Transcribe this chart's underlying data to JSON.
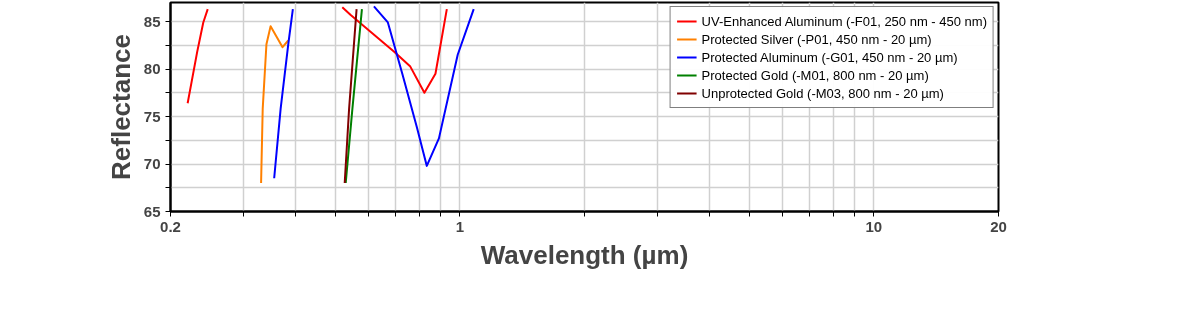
{
  "chart_data": {
    "type": "line",
    "xlabel": "Wavelength (µm)",
    "ylabel": "Reflectance",
    "log": "x",
    "grid": true,
    "legend": "top right",
    "line_style": "solid",
    "marker": "none",
    "xlim": [
      0.2,
      20
    ],
    "xticks": [
      0.2,
      {
        "value": 0.3,
        "label": null
      },
      {
        "value": 0.4,
        "label": null
      },
      {
        "value": 0.5,
        "label": null
      },
      {
        "value": 0.6,
        "label": null
      },
      {
        "value": 0.7,
        "label": null
      },
      {
        "value": 0.8,
        "label": null
      },
      {
        "value": 0.9,
        "label": null
      },
      1,
      {
        "value": 2,
        "label": null
      },
      {
        "value": 3,
        "label": null
      },
      {
        "value": 4,
        "label": null
      },
      {
        "value": 5,
        "label": null
      },
      {
        "value": 6,
        "label": null
      },
      {
        "value": 7,
        "label": null
      },
      {
        "value": 8,
        "label": null
      },
      {
        "value": 9,
        "label": null
      },
      10,
      20
    ],
    "ylim": [
      65,
      87
    ],
    "yticks": [
      65,
      {
        "value": 67.5,
        "label": null
      },
      70,
      {
        "value": 72.5,
        "label": null
      },
      75,
      {
        "value": 77.5,
        "label": null
      },
      80,
      {
        "value": 82.5,
        "label": null
      },
      85
    ],
    "series": [
      {
        "name": "UV-Enhanced Aluminum (-F01, 250 nm - 450 nm)",
        "color": "#ff0000",
        "x": [
          0.22,
          0.232,
          0.24,
          0.246,
          null,
          0.52,
          0.544,
          0.695,
          0.758,
          0.821,
          0.873,
          0.93
        ],
        "values": [
          76.4,
          81.8,
          84.9,
          86.3,
          null,
          86.5,
          85.7,
          81.8,
          80.3,
          77.5,
          79.5,
          86.3
        ]
      },
      {
        "name": "Protected Silver (-P01, 450 nm - 20 µm)",
        "color": "#ff8000",
        "x": [
          0.331,
          0.334,
          0.341,
          0.349,
          0.373,
          0.385
        ],
        "values": [
          68,
          75.8,
          82.6,
          84.5,
          82.3,
          83
        ]
      },
      {
        "name": "Protected Aluminum (-G01, 450 nm - 20 µm)",
        "color": "#0000ff",
        "x": [
          0.356,
          0.369,
          0.385,
          0.395,
          null,
          0.62,
          0.67,
          0.726,
          0.787,
          0.832,
          0.89,
          0.988,
          1.08
        ],
        "values": [
          68.5,
          75.8,
          82.6,
          86.3,
          null,
          86.6,
          84.9,
          79.5,
          73.9,
          69.8,
          72.7,
          81.5,
          86.3
        ]
      },
      {
        "name": "Protected Gold (-M01, 800 nm - 20 µm)",
        "color": "#008000",
        "x": [
          0.53,
          0.55,
          0.58
        ],
        "values": [
          68,
          75.8,
          86.3
        ]
      },
      {
        "name": "Unprotected Gold (-M03, 800 nm - 20 µm)",
        "color": "#800000",
        "x": [
          0.527,
          0.54,
          0.563
        ],
        "values": [
          68,
          75.8,
          86.3
        ]
      }
    ]
  }
}
